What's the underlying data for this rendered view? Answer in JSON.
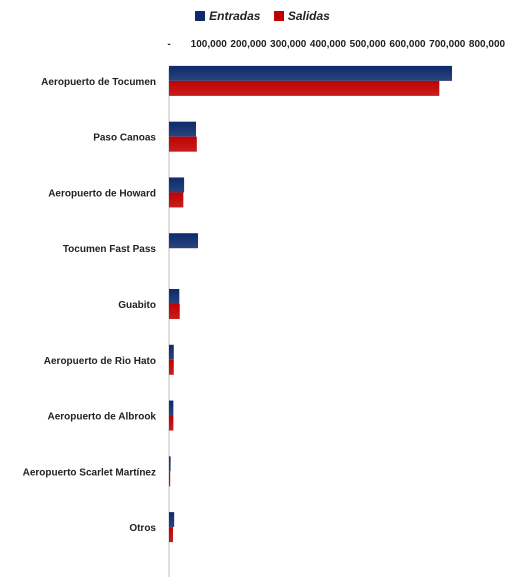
{
  "chart_data": {
    "type": "bar",
    "orientation": "horizontal",
    "categories": [
      "Aeropuerto de Tocumen",
      "Paso Canoas",
      "Aeropuerto de Howard",
      "Tocumen Fast Pass",
      "Guabito",
      "Aeropuerto de Rio Hato",
      "Aeropuerto de Albrook",
      "Aeropuerto Scarlet Martínez",
      "Otros"
    ],
    "series": [
      {
        "name": "Entradas",
        "color": "#0d2a6b",
        "values": [
          712000,
          68000,
          38000,
          73000,
          26000,
          12000,
          11000,
          4000,
          13000
        ]
      },
      {
        "name": "Salidas",
        "color": "#c00000",
        "values": [
          680000,
          70000,
          36000,
          0,
          27000,
          12000,
          11000,
          3000,
          10000
        ]
      }
    ],
    "x_tick_labels": [
      "-",
      "100,000",
      "200,000",
      "300,000",
      "400,000",
      "500,000",
      "600,000",
      "700,000",
      "800,000"
    ],
    "xlim": [
      0,
      800000
    ],
    "axis_position": "top",
    "legend_position": "top",
    "grid": false
  }
}
